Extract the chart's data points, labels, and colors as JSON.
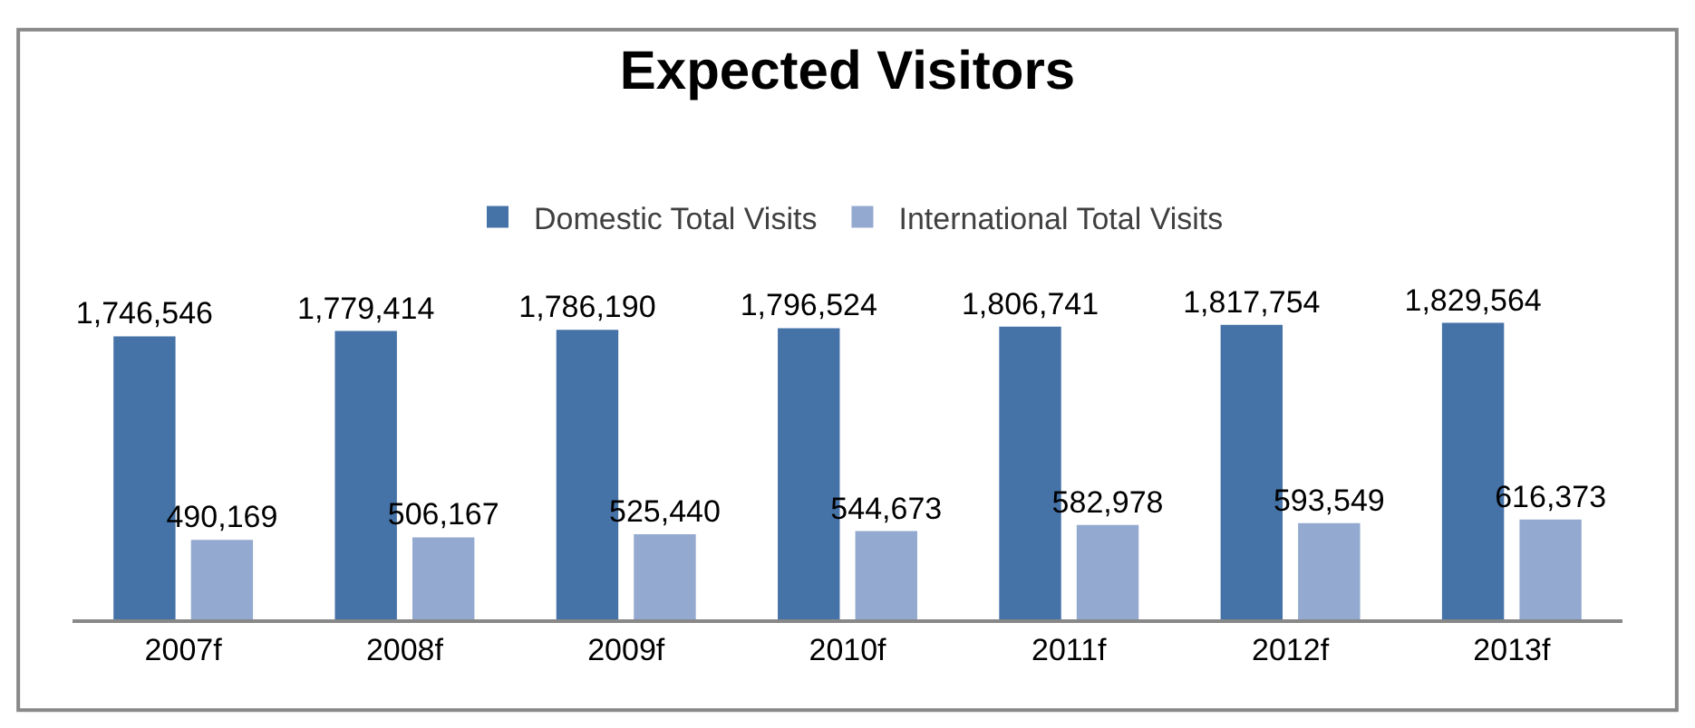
{
  "chart_data": {
    "type": "bar",
    "title": "Expected Visitors",
    "categories": [
      "2007f",
      "2008f",
      "2009f",
      "2010f",
      "2011f",
      "2012f",
      "2013f"
    ],
    "series": [
      {
        "name": "Domestic Total Visits",
        "color": "#4572a7",
        "values": [
          1746546,
          1779414,
          1786190,
          1796524,
          1806741,
          1817754,
          1829564
        ],
        "value_labels": [
          "1,746,546",
          "1,779,414",
          "1,786,190",
          "1,796,524",
          "1,806,741",
          "1,817,754",
          "1,829,564"
        ]
      },
      {
        "name": "International Total Visits",
        "color": "#93a9cf",
        "values": [
          490169,
          506167,
          525440,
          544673,
          582978,
          593549,
          616373
        ],
        "value_labels": [
          "490,169",
          "506,167",
          "525,440",
          "544,673",
          "582,978",
          "593,549",
          "616,373"
        ]
      }
    ],
    "legend": "top"
  }
}
